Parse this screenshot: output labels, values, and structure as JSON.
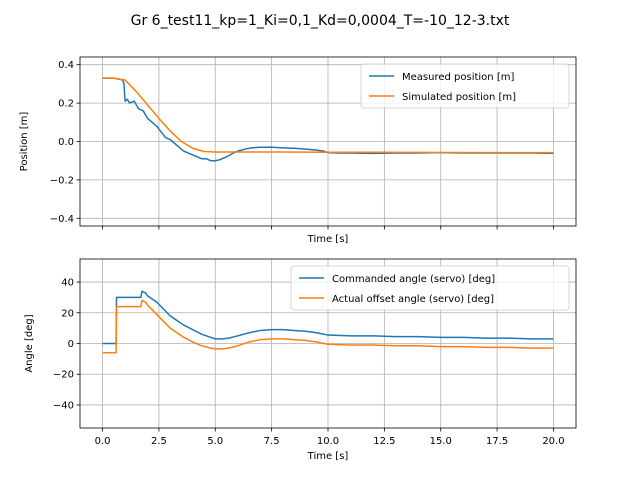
{
  "figure": {
    "title": "Gr 6_test11_kp=1_Ki=0,1_Kd=0,0004_T=-10_12-3.txt"
  },
  "chart_data": [
    {
      "type": "line",
      "xlabel": "Time [s]",
      "ylabel": "Position [m]",
      "xlim": [
        -1,
        21
      ],
      "ylim": [
        -0.44,
        0.44
      ],
      "xticks": [
        0.0,
        2.5,
        5.0,
        7.5,
        10.0,
        12.5,
        15.0,
        17.5,
        20.0
      ],
      "yticks": [
        -0.4,
        -0.2,
        0.0,
        0.2,
        0.4
      ],
      "ytick_labels": [
        "−0.4",
        "−0.2",
        "0.0",
        "0.2",
        "0.4"
      ],
      "show_xtick_labels": false,
      "grid": true,
      "legend_placement": "upper right",
      "series": [
        {
          "name": "Measured position [m]",
          "color": "#1f77b4",
          "x": [
            0.0,
            0.5,
            0.9,
            0.95,
            1.0,
            1.1,
            1.2,
            1.4,
            1.6,
            1.8,
            2.0,
            2.2,
            2.4,
            2.6,
            2.8,
            3.0,
            3.2,
            3.4,
            3.6,
            3.8,
            4.0,
            4.2,
            4.4,
            4.6,
            4.8,
            5.0,
            5.2,
            5.5,
            5.8,
            6.0,
            6.3,
            6.6,
            7.0,
            7.5,
            8.0,
            8.5,
            9.0,
            9.5,
            9.8,
            10.0,
            10.5,
            11.0,
            12.0,
            13.0,
            14.0,
            15.0,
            16.0,
            17.0,
            18.0,
            19.0,
            20.0
          ],
          "y": [
            0.33,
            0.33,
            0.32,
            0.3,
            0.21,
            0.22,
            0.2,
            0.21,
            0.17,
            0.16,
            0.12,
            0.1,
            0.08,
            0.05,
            0.02,
            0.01,
            -0.01,
            -0.03,
            -0.05,
            -0.06,
            -0.07,
            -0.08,
            -0.09,
            -0.09,
            -0.1,
            -0.1,
            -0.095,
            -0.08,
            -0.06,
            -0.05,
            -0.04,
            -0.033,
            -0.03,
            -0.03,
            -0.033,
            -0.035,
            -0.04,
            -0.045,
            -0.05,
            -0.058,
            -0.06,
            -0.06,
            -0.062,
            -0.06,
            -0.06,
            -0.058,
            -0.06,
            -0.06,
            -0.06,
            -0.06,
            -0.062
          ]
        },
        {
          "name": "Simulated position [m]",
          "color": "#ff7f0e",
          "x": [
            0.0,
            0.5,
            1.0,
            1.5,
            2.0,
            2.5,
            3.0,
            3.5,
            4.0,
            4.5,
            5.0,
            5.5,
            6.0,
            8.0,
            10.0,
            12.0,
            15.0,
            20.0
          ],
          "y": [
            0.33,
            0.33,
            0.32,
            0.26,
            0.19,
            0.12,
            0.055,
            0.0,
            -0.035,
            -0.052,
            -0.055,
            -0.055,
            -0.055,
            -0.055,
            -0.056,
            -0.056,
            -0.057,
            -0.058
          ]
        }
      ]
    },
    {
      "type": "line",
      "xlabel": "Time [s]",
      "ylabel": "Angle [deg]",
      "xlim": [
        -1,
        21
      ],
      "ylim": [
        -55,
        55
      ],
      "xticks": [
        0.0,
        2.5,
        5.0,
        7.5,
        10.0,
        12.5,
        15.0,
        17.5,
        20.0
      ],
      "xtick_labels": [
        "0.0",
        "2.5",
        "5.0",
        "7.5",
        "10.0",
        "12.5",
        "15.0",
        "17.5",
        "20.0"
      ],
      "yticks": [
        -40,
        -20,
        0,
        20,
        40
      ],
      "ytick_labels": [
        "−40",
        "−20",
        "0",
        "20",
        "40"
      ],
      "show_xtick_labels": true,
      "grid": true,
      "legend_placement": "upper right",
      "series": [
        {
          "name": "Commanded angle (servo) [deg]",
          "color": "#1f77b4",
          "x": [
            0.0,
            0.6,
            0.62,
            1.7,
            1.75,
            1.9,
            2.0,
            2.2,
            2.4,
            2.6,
            2.8,
            3.0,
            3.3,
            3.6,
            4.0,
            4.4,
            4.8,
            5.0,
            5.3,
            5.6,
            6.0,
            6.5,
            7.0,
            7.5,
            8.0,
            8.5,
            9.0,
            9.5,
            10.0,
            11.0,
            12.0,
            13.0,
            14.0,
            15.0,
            16.0,
            17.0,
            18.0,
            19.0,
            20.0
          ],
          "y": [
            0.0,
            0.0,
            30.0,
            30.0,
            34.0,
            33.0,
            31.0,
            29.0,
            27.0,
            24.0,
            21.0,
            18.0,
            15.0,
            12.0,
            9.0,
            6.0,
            4.0,
            3.0,
            3.0,
            3.5,
            5.0,
            7.0,
            8.5,
            9.0,
            9.0,
            8.5,
            8.0,
            7.0,
            5.5,
            5.0,
            5.0,
            4.5,
            4.5,
            4.0,
            4.0,
            3.5,
            3.5,
            3.0,
            3.0
          ]
        },
        {
          "name": "Actual offset angle (servo) [deg]",
          "color": "#ff7f0e",
          "x": [
            0.0,
            0.6,
            0.62,
            1.7,
            1.75,
            1.9,
            2.0,
            2.2,
            2.4,
            2.6,
            2.8,
            3.0,
            3.3,
            3.6,
            4.0,
            4.4,
            4.8,
            5.0,
            5.3,
            5.6,
            6.0,
            6.5,
            7.0,
            7.5,
            8.0,
            8.5,
            9.0,
            9.5,
            10.0,
            11.0,
            12.0,
            13.0,
            14.0,
            15.0,
            16.0,
            17.0,
            18.0,
            19.0,
            20.0
          ],
          "y": [
            -6.0,
            -6.0,
            24.0,
            24.0,
            28.0,
            27.0,
            25.0,
            22.0,
            19.0,
            16.0,
            13.0,
            10.0,
            7.0,
            4.0,
            1.0,
            -1.5,
            -3.0,
            -3.5,
            -3.5,
            -3.0,
            -1.5,
            1.0,
            2.5,
            3.0,
            3.0,
            2.5,
            2.0,
            1.0,
            -0.5,
            -1.0,
            -1.0,
            -1.5,
            -1.5,
            -2.0,
            -2.0,
            -2.5,
            -2.5,
            -3.0,
            -3.0
          ]
        }
      ]
    }
  ]
}
